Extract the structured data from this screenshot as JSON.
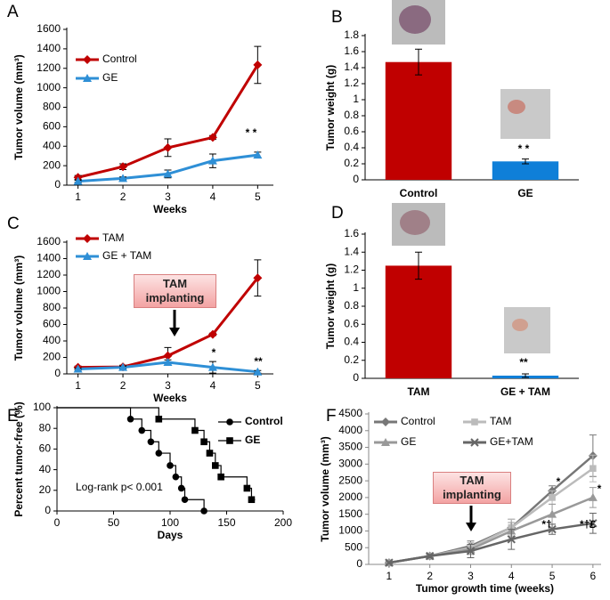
{
  "chart_data": [
    {
      "type": "line",
      "panel": "A",
      "ylabel": "Tumor volume (mm³)",
      "xlabel": "Weeks",
      "x": [
        1,
        2,
        3,
        4,
        5
      ],
      "xlim": [
        0.75,
        5.35
      ],
      "xticks": [
        1,
        2,
        3,
        4,
        5
      ],
      "ylim": [
        0,
        1600
      ],
      "yticks": [
        0,
        200,
        400,
        600,
        800,
        1000,
        1200,
        1400,
        1600
      ],
      "series": [
        {
          "name": "Control",
          "color": "#c00000",
          "marker": "diamond",
          "values": [
            80,
            190,
            385,
            490,
            1235
          ],
          "errors": [
            20,
            30,
            90,
            20,
            190
          ]
        },
        {
          "name": "GE",
          "color": "#2e8fd6",
          "marker": "triangle",
          "values": [
            40,
            70,
            115,
            250,
            310
          ],
          "errors": [
            10,
            15,
            40,
            70,
            30
          ]
        }
      ],
      "annotations": [
        "* *"
      ]
    },
    {
      "type": "bar",
      "panel": "B",
      "ylabel": "Tumor weight (g)",
      "categories": [
        "Control",
        "GE"
      ],
      "values": [
        1.47,
        0.23
      ],
      "errors": [
        0.16,
        0.03
      ],
      "colors": [
        "#c00000",
        "#0f7fd8"
      ],
      "ylim": [
        0,
        1.8
      ],
      "yticks": [
        0,
        0.2,
        0.4,
        0.6,
        0.8,
        1,
        1.2,
        1.4,
        1.6,
        1.8
      ],
      "annotations": [
        "* *"
      ]
    },
    {
      "type": "line",
      "panel": "C",
      "ylabel": "Tumor volume (mm³)",
      "xlabel": "Weeks",
      "x": [
        1,
        2,
        3,
        4,
        5
      ],
      "xlim": [
        0.75,
        5.35
      ],
      "xticks": [
        1,
        2,
        3,
        4,
        5
      ],
      "ylim": [
        0,
        1600
      ],
      "yticks": [
        0,
        200,
        400,
        600,
        800,
        1000,
        1200,
        1400,
        1600
      ],
      "series": [
        {
          "name": "TAM",
          "color": "#c00000",
          "marker": "diamond",
          "values": [
            80,
            85,
            220,
            480,
            1165
          ],
          "errors": [
            15,
            20,
            100,
            15,
            220
          ]
        },
        {
          "name": "GE + TAM",
          "color": "#2e8fd6",
          "marker": "triangle",
          "values": [
            60,
            80,
            140,
            80,
            25
          ],
          "errors": [
            10,
            15,
            30,
            70,
            15
          ]
        }
      ],
      "callout": "TAM implanting",
      "annotations": [
        "*",
        "**"
      ]
    },
    {
      "type": "bar",
      "panel": "D",
      "ylabel": "Tumor weight (g)",
      "categories": [
        "TAM",
        "GE + TAM"
      ],
      "values": [
        1.25,
        0.03
      ],
      "errors": [
        0.15,
        0.02
      ],
      "colors": [
        "#c00000",
        "#0f7fd8"
      ],
      "ylim": [
        0,
        1.6
      ],
      "yticks": [
        0,
        0.2,
        0.4,
        0.6,
        0.8,
        1,
        1.2,
        1.4,
        1.6
      ],
      "annotations": [
        "**"
      ]
    },
    {
      "type": "step",
      "panel": "E",
      "ylabel": "Percent tumor-free (%)",
      "xlabel": "Days",
      "xlim": [
        0,
        200
      ],
      "xticks": [
        0,
        50,
        100,
        150,
        200
      ],
      "ylim": [
        0,
        100
      ],
      "yticks": [
        0,
        20,
        40,
        60,
        80,
        100
      ],
      "series": [
        {
          "name": "Control",
          "color": "#000000",
          "marker": "circle",
          "x": [
            0,
            65,
            75,
            83,
            90,
            100,
            105,
            110,
            113,
            130
          ],
          "values": [
            100,
            89,
            78,
            67,
            56,
            44,
            33,
            22,
            11,
            0
          ]
        },
        {
          "name": "GE",
          "color": "#000000",
          "marker": "square",
          "x": [
            0,
            90,
            122,
            130,
            135,
            140,
            145,
            168,
            172
          ],
          "values": [
            100,
            89,
            78,
            67,
            56,
            44,
            33,
            22,
            11
          ]
        }
      ],
      "annotations": [
        "Log-rank p< 0.001"
      ]
    },
    {
      "type": "line",
      "panel": "F",
      "ylabel": "Tumor volume (mm³)",
      "xlabel": "Tumor growth time  (weeks)",
      "x": [
        1,
        2,
        3,
        4,
        5,
        6
      ],
      "xlim": [
        0.5,
        6.2
      ],
      "xticks": [
        1,
        2,
        3,
        4,
        5,
        6
      ],
      "ylim": [
        0,
        4500
      ],
      "yticks": [
        0,
        500,
        1000,
        1500,
        2000,
        2500,
        3000,
        3500,
        4000,
        4500
      ],
      "series": [
        {
          "name": "Control",
          "color": "#777777",
          "marker": "diamond",
          "values": [
            50,
            250,
            550,
            1100,
            2200,
            3250
          ],
          "errors": [
            30,
            50,
            150,
            250,
            150,
            620
          ]
        },
        {
          "name": "TAM",
          "color": "#bbbbbb",
          "marker": "square",
          "values": [
            50,
            250,
            500,
            1100,
            2000,
            2870
          ],
          "errors": [
            30,
            50,
            150,
            250,
            200,
            400
          ]
        },
        {
          "name": "GE",
          "color": "#999999",
          "marker": "triangle",
          "values": [
            50,
            250,
            450,
            1000,
            1500,
            2000
          ],
          "errors": [
            30,
            50,
            150,
            250,
            300,
            300
          ]
        },
        {
          "name": "GE+TAM",
          "color": "#666666",
          "marker": "x",
          "values": [
            50,
            250,
            400,
            750,
            1050,
            1230
          ],
          "errors": [
            30,
            50,
            200,
            300,
            150,
            300
          ]
        }
      ],
      "callout": "TAM implanting",
      "annotations": [
        "*",
        "*",
        "*†",
        "*†£"
      ]
    }
  ]
}
